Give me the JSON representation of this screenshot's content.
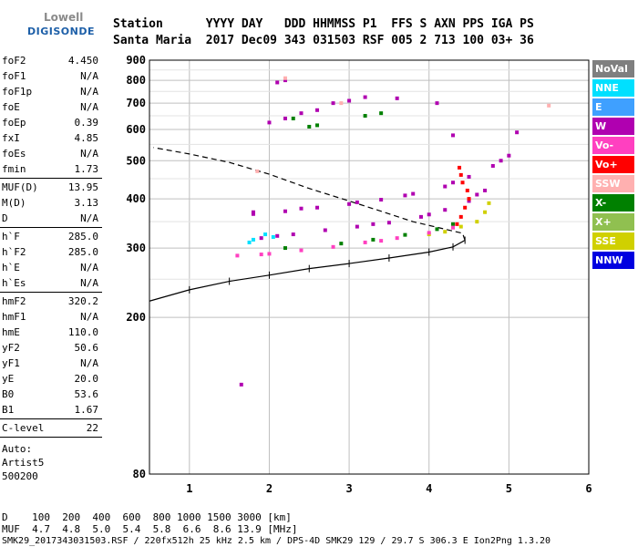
{
  "logo": {
    "line1": "Lowell",
    "line2": "DIGISONDE"
  },
  "header": {
    "line1": "Station      YYYY DAY   DDD HHMMSS P1  FFS S AXN PPS IGA PS",
    "line2": "Santa Maria  2017 Dec09 343 031503 RSF 005 2 713 100 03+ 36"
  },
  "params": [
    {
      "k": "foF2",
      "v": "4.450"
    },
    {
      "k": "foF1",
      "v": "N/A"
    },
    {
      "k": "foF1p",
      "v": "N/A"
    },
    {
      "k": "foE",
      "v": "N/A"
    },
    {
      "k": "foEp",
      "v": "0.39"
    },
    {
      "k": "fxI",
      "v": "4.85"
    },
    {
      "k": "foEs",
      "v": "N/A"
    },
    {
      "k": "fmin",
      "v": "1.73"
    },
    {
      "sep": true
    },
    {
      "k": "MUF(D)",
      "v": "13.95"
    },
    {
      "k": "M(D)",
      "v": "3.13"
    },
    {
      "k": "D",
      "v": "N/A"
    },
    {
      "sep": true
    },
    {
      "k": "h`F",
      "v": "285.0"
    },
    {
      "k": "h`F2",
      "v": "285.0"
    },
    {
      "k": "h`E",
      "v": "N/A"
    },
    {
      "k": "h`Es",
      "v": "N/A"
    },
    {
      "sep": true
    },
    {
      "k": "hmF2",
      "v": "320.2"
    },
    {
      "k": "hmF1",
      "v": "N/A"
    },
    {
      "k": "hmE",
      "v": "110.0"
    },
    {
      "k": "yF2",
      "v": "50.6"
    },
    {
      "k": "yF1",
      "v": "N/A"
    },
    {
      "k": "yE",
      "v": "20.0"
    },
    {
      "k": "B0",
      "v": "53.6"
    },
    {
      "k": "B1",
      "v": "1.67"
    },
    {
      "sep": true
    },
    {
      "k": "C-level",
      "v": "22"
    },
    {
      "sep": true
    }
  ],
  "autoscaling": {
    "line1": "Auto:",
    "line2": "Artist5",
    "line3": "500200"
  },
  "legend": [
    {
      "label": "NoVal",
      "color": "#7f7f7f"
    },
    {
      "label": "NNE",
      "color": "#00e0ff"
    },
    {
      "label": "E",
      "color": "#3fa0ff"
    },
    {
      "label": "W",
      "color": "#b000b0"
    },
    {
      "label": "Vo-",
      "color": "#ff40c0"
    },
    {
      "label": "Vo+",
      "color": "#ff0000"
    },
    {
      "label": "SSW",
      "color": "#ffb0b0"
    },
    {
      "label": "X-",
      "color": "#008000"
    },
    {
      "label": "X+",
      "color": "#90c050"
    },
    {
      "label": "SSE",
      "color": "#d0d000"
    },
    {
      "label": "NNW",
      "color": "#0000e0"
    }
  ],
  "bottom": {
    "line1": "D    100  200  400  600  800 1000 1500 3000 [km]",
    "line2": "MUF  4.7  4.8  5.0  5.4  5.8  6.6  8.6 13.9 [MHz]",
    "line3": "SMK29_2017343031503.RSF / 220fx512h 25 kHz 2.5 km / DPS-4D SMK29 129 / 29.7 S 306.3 E Ion2Png 1.3.20"
  },
  "chart_data": {
    "type": "scatter",
    "xlim": [
      0.5,
      6
    ],
    "ylim": [
      80,
      900
    ],
    "y_scale": "log",
    "x_ticks": [
      1,
      2,
      3,
      4,
      5,
      6
    ],
    "y_ticks": [
      80,
      200,
      300,
      400,
      500,
      600,
      700,
      800,
      900
    ],
    "grid": true,
    "profile": [
      [
        0.5,
        220
      ],
      [
        1.0,
        235
      ],
      [
        1.5,
        247
      ],
      [
        2.0,
        256
      ],
      [
        2.5,
        266
      ],
      [
        3.0,
        274
      ],
      [
        3.5,
        283
      ],
      [
        4.0,
        293
      ],
      [
        4.3,
        302
      ],
      [
        4.45,
        314
      ],
      [
        4.42,
        327
      ],
      [
        4.2,
        335
      ],
      [
        3.8,
        350
      ],
      [
        3.4,
        372
      ],
      [
        3.0,
        395
      ],
      [
        2.5,
        425
      ],
      [
        2.0,
        462
      ],
      [
        1.5,
        495
      ],
      [
        1.0,
        520
      ],
      [
        0.55,
        540
      ]
    ],
    "traces": [
      {
        "series": "W",
        "points": [
          [
            1.8,
            366
          ],
          [
            2.2,
            372
          ],
          [
            2.6,
            380
          ],
          [
            3.0,
            388
          ],
          [
            3.4,
            398
          ],
          [
            3.8,
            412
          ],
          [
            4.2,
            430
          ],
          [
            4.5,
            455
          ],
          [
            4.8,
            485
          ],
          [
            5.0,
            515
          ],
          [
            1.8,
            370
          ],
          [
            2.4,
            378
          ],
          [
            3.1,
            392
          ],
          [
            3.7,
            408
          ],
          [
            4.3,
            440
          ],
          [
            4.9,
            500
          ]
        ]
      },
      {
        "series": "W",
        "points": [
          [
            1.9,
            318
          ],
          [
            2.3,
            325
          ],
          [
            2.7,
            333
          ],
          [
            3.1,
            340
          ],
          [
            3.5,
            348
          ],
          [
            3.9,
            360
          ],
          [
            4.2,
            375
          ],
          [
            4.5,
            395
          ],
          [
            4.7,
            420
          ],
          [
            2.1,
            322
          ],
          [
            3.3,
            345
          ],
          [
            4.0,
            365
          ],
          [
            4.6,
            410
          ]
        ]
      },
      {
        "series": "Vo+",
        "points": [
          [
            4.35,
            345
          ],
          [
            4.4,
            360
          ],
          [
            4.45,
            380
          ],
          [
            4.5,
            400
          ],
          [
            4.48,
            420
          ],
          [
            4.42,
            440
          ],
          [
            4.4,
            460
          ],
          [
            4.38,
            480
          ]
        ]
      },
      {
        "series": "SSE",
        "points": [
          [
            4.0,
            325
          ],
          [
            4.2,
            330
          ],
          [
            4.4,
            340
          ],
          [
            4.6,
            350
          ],
          [
            4.7,
            370
          ],
          [
            4.75,
            390
          ]
        ]
      },
      {
        "series": "X-",
        "points": [
          [
            2.9,
            308
          ],
          [
            3.3,
            315
          ],
          [
            3.7,
            324
          ],
          [
            4.1,
            335
          ],
          [
            2.2,
            300
          ],
          [
            4.3,
            345
          ]
        ]
      },
      {
        "series": "Vo-",
        "points": [
          [
            1.6,
            287
          ],
          [
            2.0,
            290
          ],
          [
            2.4,
            296
          ],
          [
            2.8,
            302
          ],
          [
            3.2,
            310
          ],
          [
            3.6,
            318
          ],
          [
            4.0,
            328
          ],
          [
            4.3,
            338
          ],
          [
            1.9,
            289
          ],
          [
            3.4,
            313
          ]
        ]
      },
      {
        "series": "NNE",
        "points": [
          [
            1.75,
            310
          ],
          [
            1.8,
            315
          ],
          [
            2.05,
            320
          ],
          [
            1.95,
            325
          ]
        ]
      },
      {
        "series": "W",
        "points": [
          [
            2.0,
            625
          ],
          [
            2.2,
            640
          ],
          [
            2.4,
            660
          ],
          [
            2.6,
            672
          ],
          [
            2.8,
            700
          ],
          [
            3.0,
            710
          ],
          [
            3.2,
            725
          ],
          [
            3.6,
            720
          ],
          [
            4.1,
            700
          ],
          [
            4.3,
            580
          ],
          [
            5.1,
            590
          ],
          [
            2.1,
            790
          ],
          [
            2.2,
            800
          ],
          [
            1.65,
            135
          ]
        ]
      },
      {
        "series": "X-",
        "points": [
          [
            2.5,
            610
          ],
          [
            2.6,
            615
          ],
          [
            3.2,
            650
          ],
          [
            3.4,
            660
          ],
          [
            2.3,
            640
          ]
        ]
      },
      {
        "series": "SSW",
        "points": [
          [
            5.5,
            690
          ],
          [
            2.9,
            700
          ],
          [
            2.2,
            810
          ],
          [
            1.85,
            470
          ]
        ]
      }
    ]
  }
}
